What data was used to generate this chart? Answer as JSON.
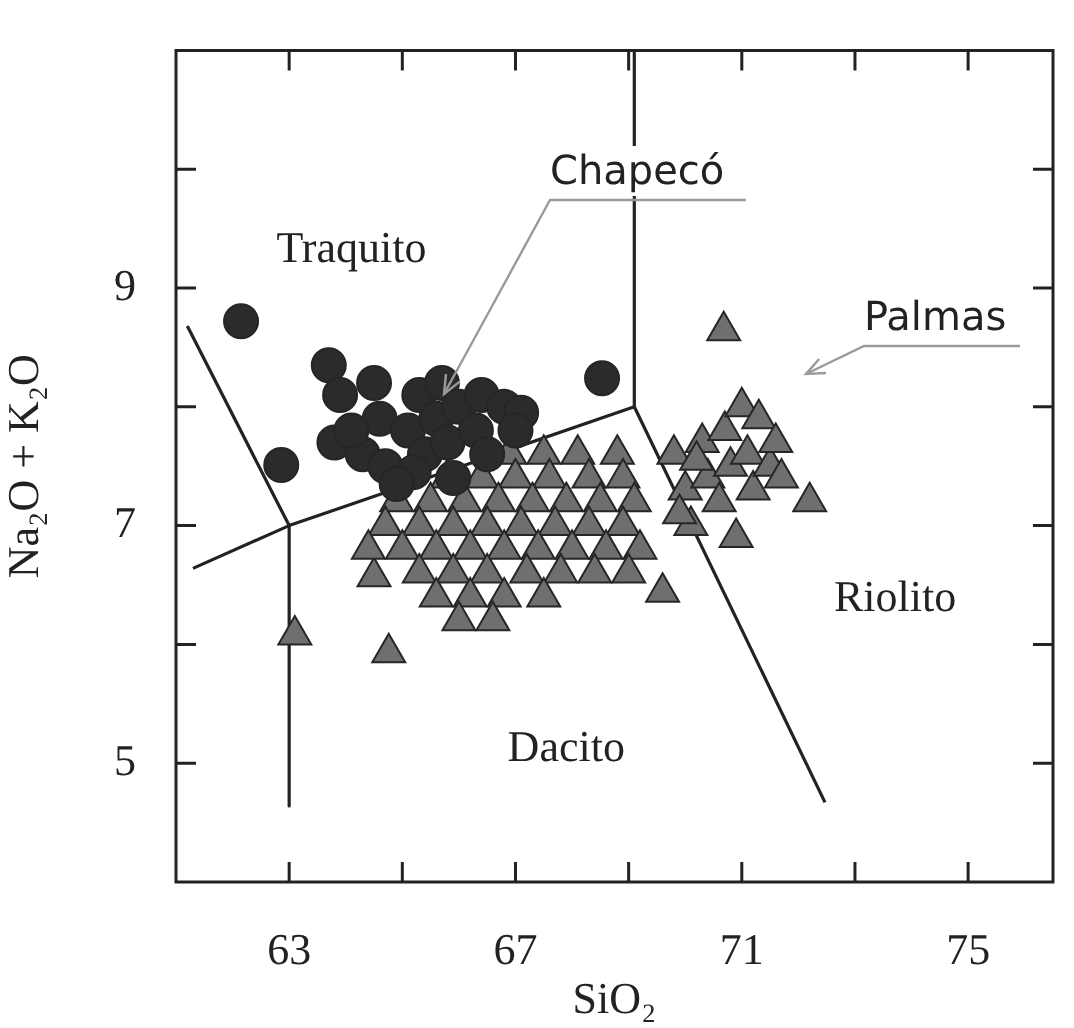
{
  "chart_data": {
    "type": "scatter",
    "xlabel": "SiO₂",
    "ylabel": "Na₂O + K₂O",
    "xlim": [
      61,
      76.5
    ],
    "ylim": [
      4,
      11
    ],
    "xticks": [
      63,
      {
        "value": 65,
        "label": null
      },
      67,
      {
        "value": 69,
        "label": null
      },
      71,
      {
        "value": 73,
        "label": null
      },
      75
    ],
    "yticks": [
      5,
      {
        "value": 6,
        "label": null
      },
      7,
      {
        "value": 8,
        "label": null
      },
      9,
      {
        "value": 10,
        "label": null
      }
    ],
    "grid": false,
    "legend": "top right",
    "series": [
      {
        "name": "Chapecó",
        "color": "#2b2b2b",
        "marker": "circle",
        "x": [
          62.15,
          62.86,
          68.53,
          63.7,
          63.9,
          63.8,
          64.3,
          64.5,
          64.6,
          64.7,
          65.1,
          65.3,
          65.4,
          65.6,
          65.7,
          65.8,
          66.0,
          66.3,
          66.4,
          66.8,
          67.1,
          65.2,
          64.9,
          64.1,
          65.9,
          66.5,
          67.0
        ],
        "values": [
          8.72,
          7.51,
          8.24,
          8.35,
          8.1,
          7.7,
          7.6,
          8.2,
          7.9,
          7.5,
          7.8,
          8.1,
          7.6,
          7.9,
          8.2,
          7.7,
          8.0,
          7.8,
          8.1,
          8.0,
          7.95,
          7.45,
          7.35,
          7.8,
          7.4,
          7.6,
          7.8
        ]
      },
      {
        "name": "Palmas",
        "color": "#6f6f6f",
        "marker": "triangle",
        "x": [
          63.1,
          64.76,
          70.68,
          72.2,
          64.5,
          66.9,
          67.5,
          68.1,
          68.8,
          65.8,
          66.4,
          67.0,
          67.6,
          68.3,
          68.9,
          64.9,
          65.5,
          66.1,
          66.7,
          67.3,
          67.9,
          68.5,
          69.1,
          64.7,
          65.3,
          65.9,
          66.5,
          67.1,
          67.7,
          68.3,
          68.9,
          64.4,
          65.0,
          65.6,
          66.2,
          66.8,
          67.4,
          68.0,
          68.6,
          69.2,
          65.3,
          65.9,
          66.5,
          67.2,
          67.8,
          68.4,
          69.0,
          65.6,
          66.2,
          66.8,
          67.5,
          69.6,
          66.0,
          66.6,
          69.8,
          70.0,
          70.1,
          70.3,
          70.4,
          70.6,
          70.7,
          70.8,
          71.0,
          71.1,
          71.2,
          71.3,
          71.5,
          71.6,
          71.7,
          70.9,
          70.2,
          69.9
        ],
        "values": [
          6.08,
          5.93,
          8.64,
          7.2,
          6.57,
          7.6,
          7.6,
          7.6,
          7.6,
          7.4,
          7.4,
          7.4,
          7.4,
          7.4,
          7.4,
          7.2,
          7.2,
          7.2,
          7.2,
          7.2,
          7.2,
          7.2,
          7.2,
          7.0,
          7.0,
          7.0,
          7.0,
          7.0,
          7.0,
          7.0,
          7.0,
          6.8,
          6.8,
          6.8,
          6.8,
          6.8,
          6.8,
          6.8,
          6.8,
          6.8,
          6.6,
          6.6,
          6.6,
          6.6,
          6.6,
          6.6,
          6.6,
          6.4,
          6.4,
          6.4,
          6.4,
          6.44,
          6.2,
          6.2,
          7.6,
          7.3,
          7.0,
          7.7,
          7.4,
          7.2,
          7.8,
          7.5,
          8.0,
          7.6,
          7.3,
          7.9,
          7.5,
          7.7,
          7.4,
          6.9,
          7.55,
          7.1
        ]
      },
      {
        "type": "line",
        "color": "#222222",
        "marker": "none",
        "x": [
          61.2,
          63,
          63
        ],
        "values": [
          8.68,
          7,
          4.64
        ]
      },
      {
        "type": "line",
        "color": "#222222",
        "marker": "none",
        "x": [
          61.3,
          63,
          69.1
        ],
        "values": [
          6.64,
          7,
          8
        ]
      },
      {
        "type": "line",
        "color": "#222222",
        "marker": "none",
        "x": [
          69.1,
          69.1,
          72.47
        ],
        "values": [
          11,
          8,
          4.67
        ]
      }
    ],
    "annotations": [
      "Traquito",
      "Dacito",
      "Riolito"
    ]
  }
}
